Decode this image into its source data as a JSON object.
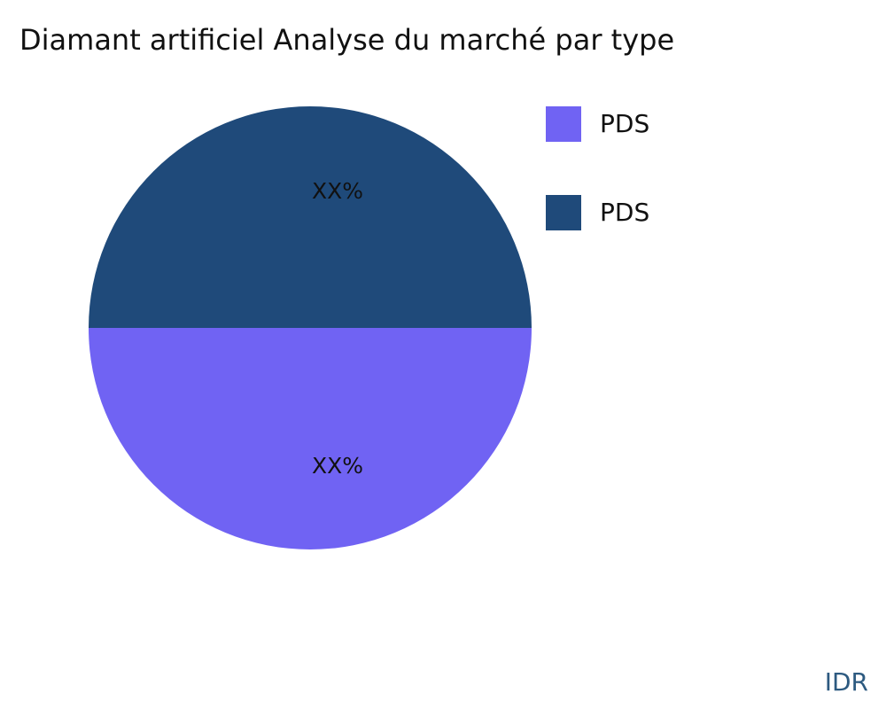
{
  "chart_data": {
    "type": "pie",
    "title": "Diamant artificiel Analyse du marché par type",
    "slices": [
      {
        "name": "PDS",
        "value": 50,
        "label": "XX%",
        "color": "#7063f3"
      },
      {
        "name": "PDS",
        "value": 50,
        "label": "XX%",
        "color": "#1f4a7a"
      }
    ],
    "legend_position": "right"
  },
  "watermark": "IDR"
}
